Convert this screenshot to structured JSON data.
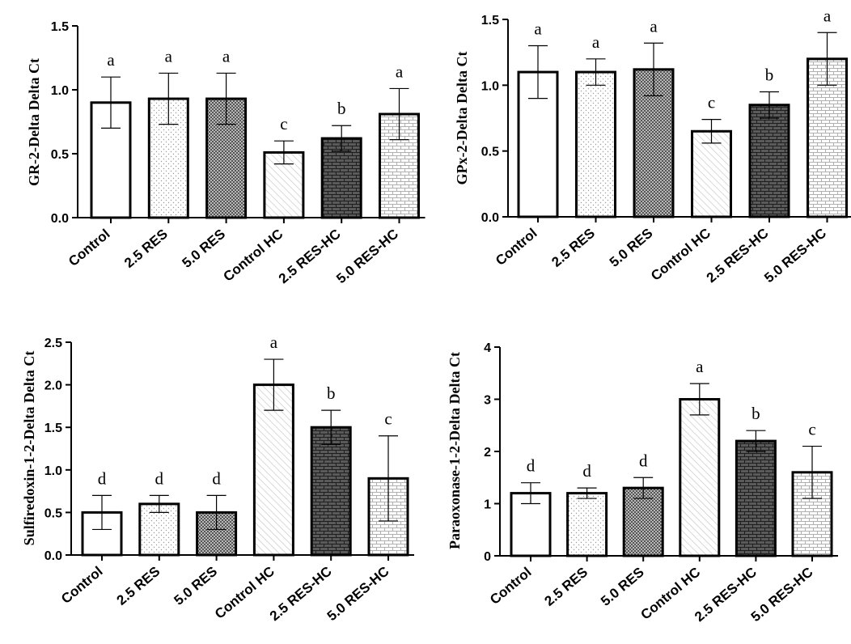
{
  "chart_data": [
    {
      "type": "bar",
      "ylabel": "GR-2-Delta Delta Ct",
      "categories": [
        "Control",
        "2.5 RES",
        "5.0 RES",
        "Control HC",
        "2.5 RES-HC",
        "5.0 RES-HC"
      ],
      "values": [
        0.9,
        0.93,
        0.93,
        0.51,
        0.62,
        0.81
      ],
      "errors": [
        0.2,
        0.2,
        0.2,
        0.09,
        0.1,
        0.2
      ],
      "significance": [
        "a",
        "a",
        "a",
        "c",
        "b",
        "a"
      ],
      "patterns": [
        "white",
        "dots",
        "cross",
        "diagonal",
        "brick-dark",
        "brick-light"
      ],
      "ylim": [
        0,
        1.5
      ],
      "yticks": [
        "0.0",
        "0.5",
        "1.0",
        "1.5"
      ]
    },
    {
      "type": "bar",
      "ylabel": "GPx-2-Delta Delta Ct",
      "categories": [
        "Control",
        "2.5 RES",
        "5.0 RES",
        "Control HC",
        "2.5 RES-HC",
        "5.0 RES-HC"
      ],
      "values": [
        1.1,
        1.1,
        1.12,
        0.65,
        0.85,
        1.2
      ],
      "errors": [
        0.2,
        0.1,
        0.2,
        0.09,
        0.1,
        0.2
      ],
      "significance": [
        "a",
        "a",
        "a",
        "c",
        "b",
        "a"
      ],
      "patterns": [
        "white",
        "dots",
        "cross",
        "diagonal",
        "brick-dark",
        "brick-light"
      ],
      "ylim": [
        0,
        1.5
      ],
      "yticks": [
        "0.0",
        "0.5",
        "1.0",
        "1.5"
      ]
    },
    {
      "type": "bar",
      "ylabel": "Sulfiredoxin-1-2-Delta Delta Ct",
      "categories": [
        "Control",
        "2.5 RES",
        "5.0 RES",
        "Control HC",
        "2.5 RES-HC",
        "5.0 RES-HC"
      ],
      "values": [
        0.5,
        0.6,
        0.5,
        2.0,
        1.5,
        0.9
      ],
      "errors": [
        0.2,
        0.1,
        0.2,
        0.3,
        0.2,
        0.5
      ],
      "significance": [
        "d",
        "d",
        "d",
        "a",
        "b",
        "c"
      ],
      "patterns": [
        "white",
        "dots",
        "cross",
        "diagonal",
        "brick-dark",
        "brick-light"
      ],
      "ylim": [
        0,
        2.5
      ],
      "yticks": [
        "0.0",
        "0.5",
        "1.0",
        "1.5",
        "2.0",
        "2.5"
      ]
    },
    {
      "type": "bar",
      "ylabel": "Paraoxonase-1-2-Delta Delta Ct",
      "categories": [
        "Control",
        "2.5 RES",
        "5.0 RES",
        "Control HC",
        "2.5 RES-HC",
        "5.0 RES-HC"
      ],
      "values": [
        1.2,
        1.2,
        1.3,
        3.0,
        2.2,
        1.6
      ],
      "errors": [
        0.2,
        0.1,
        0.2,
        0.3,
        0.2,
        0.5
      ],
      "significance": [
        "d",
        "d",
        "d",
        "a",
        "b",
        "c"
      ],
      "patterns": [
        "white",
        "dots",
        "cross",
        "diagonal",
        "brick-dark",
        "brick-light"
      ],
      "ylim": [
        0,
        4
      ],
      "yticks": [
        "0",
        "1",
        "2",
        "3",
        "4"
      ]
    }
  ]
}
